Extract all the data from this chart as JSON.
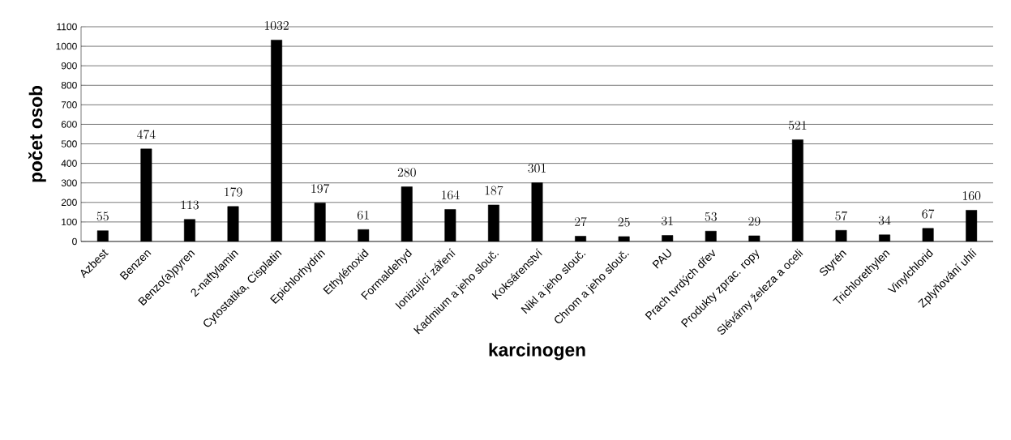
{
  "chart_data": {
    "type": "bar",
    "xlabel": "karcinogen",
    "ylabel": "počet osob",
    "categories": [
      "Azbest",
      "Benzen",
      "Benzo(a)pyren",
      "2-naftylamin",
      "Cytostatika, Cisplatin",
      "Epichlorhydrin",
      "Ethylénoxid",
      "Formaldehyd",
      "Ionizující záření",
      "Kadmium a jeho slouč.",
      "Koksárenství",
      "Nikl a jeho slouč.",
      "Chrom a jeho slouč.",
      "PAU",
      "Prach tvrdých dřev",
      "Produkty zprac. ropy",
      "Slévárny železa a oceli",
      "Styrén",
      "Trichlorethylen",
      "Vinylchlorid",
      "Zplyňování uhlí"
    ],
    "values": [
      55,
      474,
      113,
      179,
      1032,
      197,
      61,
      280,
      164,
      187,
      301,
      27,
      25,
      31,
      53,
      29,
      521,
      57,
      34,
      67,
      160
    ],
    "color": "#000000",
    "ylim": [
      0,
      1100
    ],
    "yticks": [
      0,
      100,
      200,
      300,
      400,
      500,
      600,
      700,
      800,
      900,
      1000,
      1100
    ],
    "grid": "y",
    "data_labels": true
  }
}
